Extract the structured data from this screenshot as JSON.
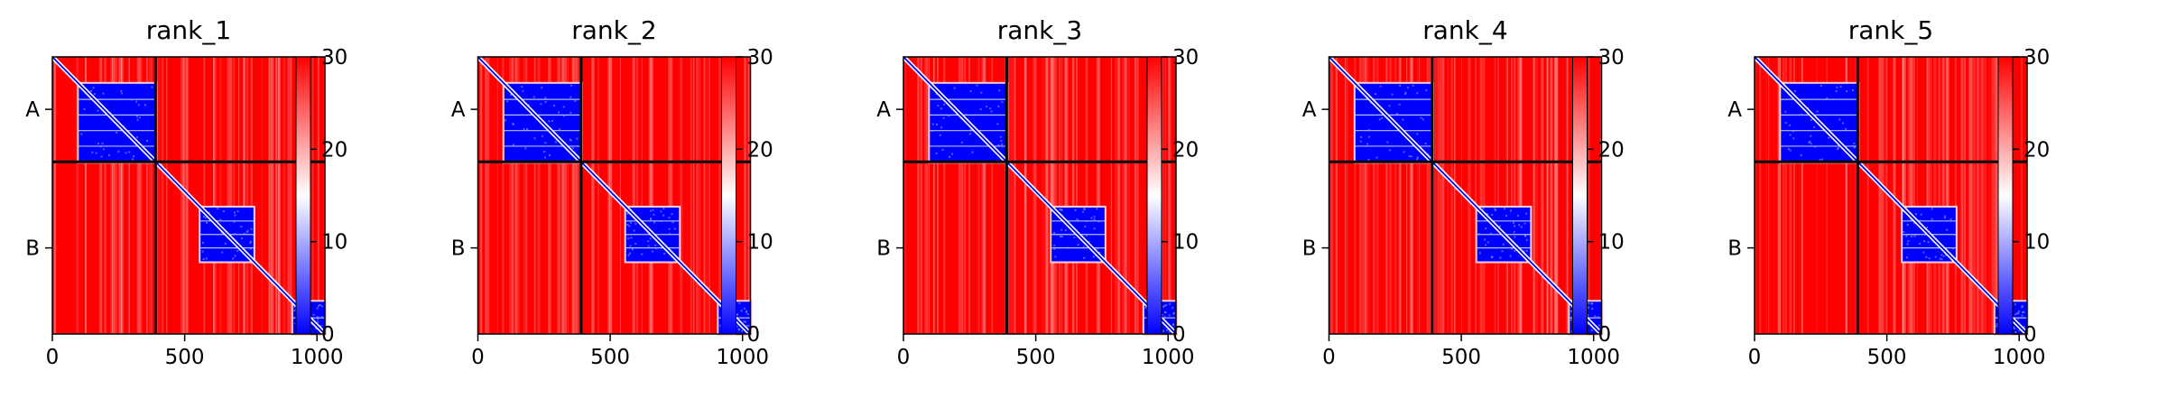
{
  "figure": {
    "colormap": {
      "low": "#0000ff",
      "mid": "#ffffff",
      "high": "#ff0000"
    },
    "chain_boundary_color": "#000000",
    "diagonal_color": "#ffffff"
  },
  "chart_data": [
    {
      "type": "heatmap",
      "title": "rank_1",
      "xlim": [
        0,
        1030
      ],
      "xticks": [
        0,
        500,
        1000
      ],
      "chain_boundary": 390,
      "ytick_labels": [
        {
          "label": "A",
          "center": 195
        },
        {
          "label": "B",
          "center": 710
        }
      ],
      "colorbar": {
        "min": 0,
        "max": 30,
        "ticks": [
          0,
          10,
          20,
          30
        ]
      },
      "low_pae_blocks": [
        [
          100,
          390,
          100,
          390
        ],
        [
          560,
          760,
          560,
          760
        ],
        [
          910,
          1030,
          910,
          1030
        ]
      ]
    },
    {
      "type": "heatmap",
      "title": "rank_2",
      "xlim": [
        0,
        1030
      ],
      "xticks": [
        0,
        500,
        1000
      ],
      "chain_boundary": 390,
      "ytick_labels": [
        {
          "label": "A",
          "center": 195
        },
        {
          "label": "B",
          "center": 710
        }
      ],
      "colorbar": {
        "min": 0,
        "max": 30,
        "ticks": [
          0,
          10,
          20,
          30
        ]
      },
      "low_pae_blocks": [
        [
          100,
          390,
          100,
          390
        ],
        [
          560,
          760,
          560,
          760
        ],
        [
          910,
          1030,
          910,
          1030
        ]
      ]
    },
    {
      "type": "heatmap",
      "title": "rank_3",
      "xlim": [
        0,
        1030
      ],
      "xticks": [
        0,
        500,
        1000
      ],
      "chain_boundary": 390,
      "ytick_labels": [
        {
          "label": "A",
          "center": 195
        },
        {
          "label": "B",
          "center": 710
        }
      ],
      "colorbar": {
        "min": 0,
        "max": 30,
        "ticks": [
          0,
          10,
          20,
          30
        ]
      },
      "low_pae_blocks": [
        [
          100,
          390,
          100,
          390
        ],
        [
          560,
          760,
          560,
          760
        ],
        [
          910,
          1030,
          910,
          1030
        ]
      ]
    },
    {
      "type": "heatmap",
      "title": "rank_4",
      "xlim": [
        0,
        1030
      ],
      "xticks": [
        0,
        500,
        1000
      ],
      "chain_boundary": 390,
      "ytick_labels": [
        {
          "label": "A",
          "center": 195
        },
        {
          "label": "B",
          "center": 710
        }
      ],
      "colorbar": {
        "min": 0,
        "max": 30,
        "ticks": [
          0,
          10,
          20,
          30
        ]
      },
      "low_pae_blocks": [
        [
          100,
          390,
          100,
          390
        ],
        [
          560,
          760,
          560,
          760
        ],
        [
          910,
          1030,
          910,
          1030
        ]
      ]
    },
    {
      "type": "heatmap",
      "title": "rank_5",
      "xlim": [
        0,
        1030
      ],
      "xticks": [
        0,
        500,
        1000
      ],
      "chain_boundary": 390,
      "ytick_labels": [
        {
          "label": "A",
          "center": 195
        },
        {
          "label": "B",
          "center": 710
        }
      ],
      "colorbar": {
        "min": 0,
        "max": 30,
        "ticks": [
          0,
          10,
          20,
          30
        ]
      },
      "low_pae_blocks": [
        [
          100,
          390,
          100,
          390
        ],
        [
          560,
          760,
          560,
          760
        ],
        [
          910,
          1030,
          910,
          1030
        ]
      ]
    }
  ]
}
